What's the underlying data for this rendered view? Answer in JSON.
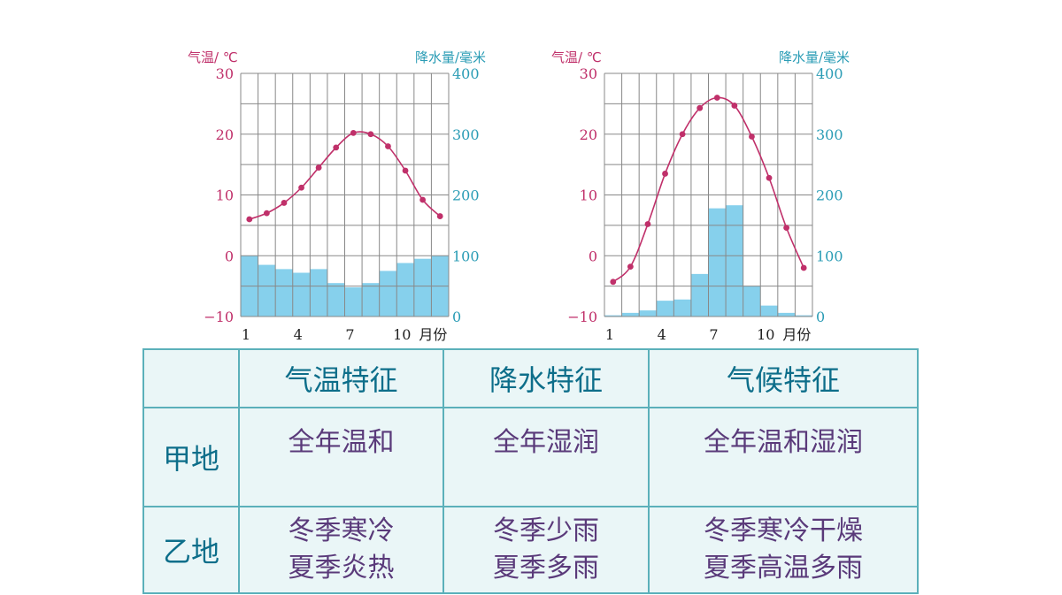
{
  "chart_data": [
    {
      "type": "line+bar",
      "months": [
        1,
        2,
        3,
        4,
        5,
        6,
        7,
        8,
        9,
        10,
        11,
        12
      ],
      "x_tick_labels": [
        "1",
        "4",
        "7",
        "10"
      ],
      "x_unit": "月份",
      "left_axis_label": "气温/ ℃",
      "right_axis_label": "降水量/毫米",
      "left_ticks": [
        "30",
        "20",
        "10",
        "0",
        "−10"
      ],
      "right_ticks": [
        "400",
        "300",
        "200",
        "100",
        "0"
      ],
      "temp_range": [
        -10,
        30
      ],
      "precip_range": [
        0,
        400
      ],
      "temperature": [
        6,
        7,
        8.7,
        11.2,
        14.5,
        17.8,
        20.2,
        20,
        18,
        14,
        9.2,
        6.5
      ],
      "precipitation": [
        100,
        85,
        78,
        72,
        78,
        55,
        48,
        55,
        75,
        88,
        95,
        100
      ],
      "grid": true
    },
    {
      "type": "line+bar",
      "months": [
        1,
        2,
        3,
        4,
        5,
        6,
        7,
        8,
        9,
        10,
        11,
        12
      ],
      "x_tick_labels": [
        "1",
        "4",
        "7",
        "10"
      ],
      "x_unit": "月份",
      "left_axis_label": "气温/ ℃",
      "right_axis_label": "降水量/毫米",
      "left_ticks": [
        "30",
        "20",
        "10",
        "0",
        "−10"
      ],
      "right_ticks": [
        "400",
        "300",
        "200",
        "100",
        "0"
      ],
      "temp_range": [
        -10,
        30
      ],
      "precip_range": [
        0,
        400
      ],
      "temperature": [
        -4.3,
        -1.8,
        5.2,
        13.5,
        20,
        24.3,
        26,
        24.7,
        19.6,
        12.8,
        4.6,
        -2
      ],
      "precipitation": [
        2,
        6,
        10,
        26,
        28,
        70,
        178,
        183,
        50,
        18,
        6,
        2
      ],
      "grid": true
    }
  ],
  "table": {
    "headers": [
      "",
      "气温特征",
      "降水特征",
      "气候特征"
    ],
    "rows": [
      {
        "label": "甲地",
        "temp": "全年温和",
        "precip": "全年湿润",
        "climate": "全年温和湿润"
      },
      {
        "label": "乙地",
        "temp_1": "冬季寒冷",
        "temp_2": "夏季炎热",
        "precip_1": "冬季少雨",
        "precip_2": "夏季多雨",
        "climate_1": "冬季寒冷干燥",
        "climate_2": "夏季高温多雨"
      }
    ]
  },
  "colors": {
    "temp_line": "#c0306a",
    "precip_bar": "#86d0ec",
    "grid": "#888888",
    "table_bg": "#eaf6f7",
    "table_border": "#5bb0ba",
    "header_text": "#0d6e8a",
    "cell_text": "#5a3a7a"
  }
}
